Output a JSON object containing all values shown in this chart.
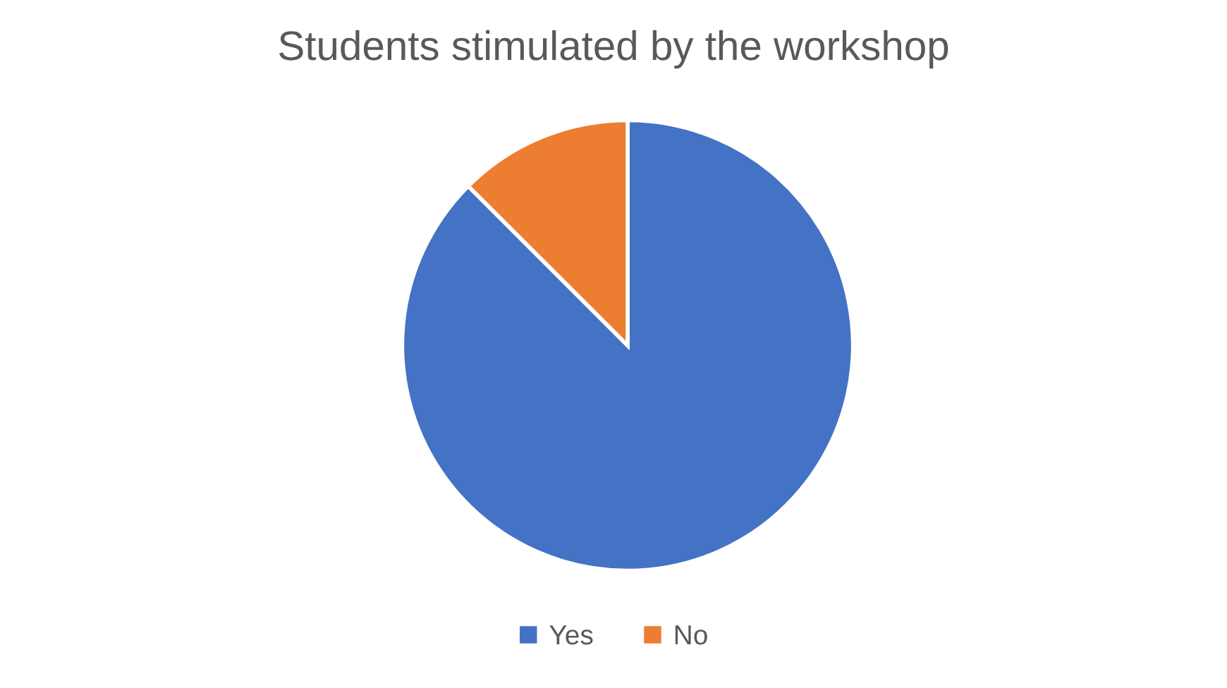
{
  "chart_data": {
    "type": "pie",
    "title": "Students stimulated by the workshop",
    "categories": [
      "Yes",
      "No"
    ],
    "values": [
      87.5,
      12.5
    ],
    "colors": [
      "#4472c4",
      "#ed7d31"
    ],
    "legend": "bottom"
  }
}
